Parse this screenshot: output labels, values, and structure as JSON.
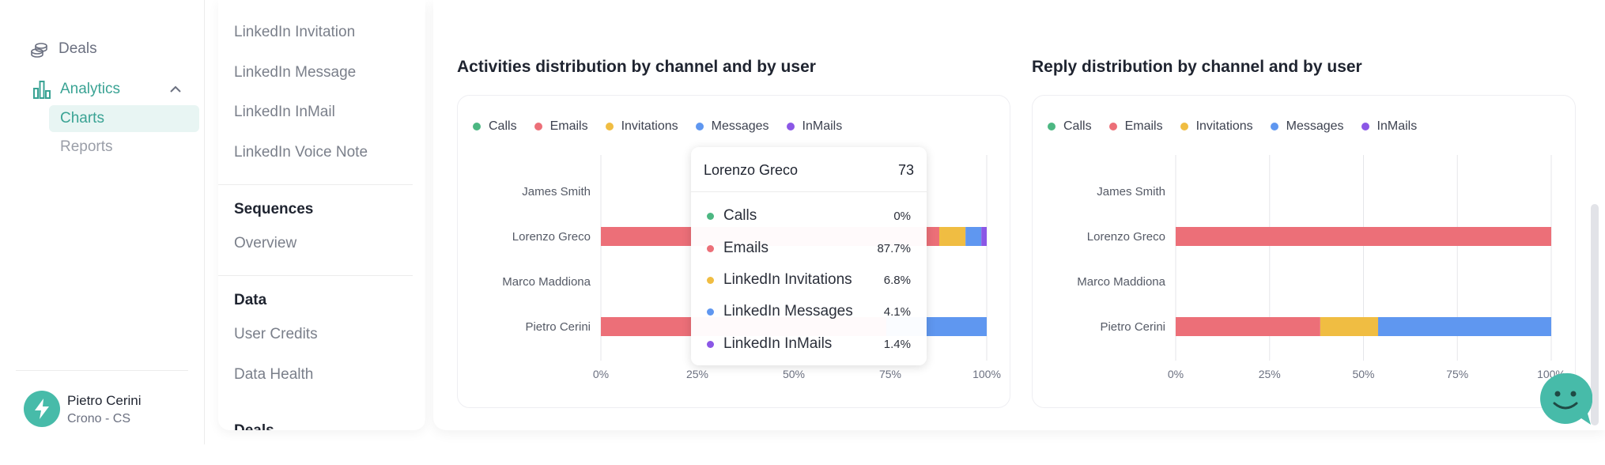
{
  "nav": {
    "items": [
      {
        "label": "Deals",
        "icon": "coins-icon"
      },
      {
        "label": "Analytics",
        "icon": "bar-chart-icon",
        "expanded": true
      }
    ],
    "sub_items": [
      {
        "label": "Charts",
        "active": true
      },
      {
        "label": "Reports",
        "active": false
      }
    ]
  },
  "user": {
    "name": "Pietro Cerini",
    "org": "Crono - CS",
    "avatar_icon": "lightning-icon"
  },
  "subnav": {
    "linkedin_links": [
      "LinkedIn Invitation",
      "LinkedIn Message",
      "LinkedIn InMail",
      "LinkedIn Voice Note"
    ],
    "sequences_heading": "Sequences",
    "sequences_links": [
      "Overview"
    ],
    "data_heading": "Data",
    "data_links": [
      "User Credits",
      "Data Health"
    ],
    "deals_heading": "Deals"
  },
  "colors": {
    "calls": "#4cb782",
    "emails": "#ec6f78",
    "invitations": "#f0bd42",
    "messages": "#5f97f0",
    "inmails": "#8b57e6",
    "accent": "#3aa394",
    "active_bg": "#e8f5f3"
  },
  "chart_data": [
    {
      "type": "bar",
      "orientation": "horizontal",
      "stacked": true,
      "percent": true,
      "title": "Activities distribution by channel and by user",
      "categories": [
        "James Smith",
        "Lorenzo Greco",
        "Marco Maddiona",
        "Pietro Cerini"
      ],
      "xticks": [
        "0%",
        "25%",
        "50%",
        "75%",
        "100%"
      ],
      "xlim": [
        0,
        100
      ],
      "grid": true,
      "legend_position": "top-left",
      "series": [
        {
          "name": "Calls",
          "color": "#4cb782",
          "values": [
            0,
            0,
            0,
            0
          ]
        },
        {
          "name": "Emails",
          "color": "#ec6f78",
          "values": [
            0,
            87.7,
            0,
            74
          ]
        },
        {
          "name": "Invitations",
          "color": "#f0bd42",
          "values": [
            0,
            6.8,
            0,
            0
          ]
        },
        {
          "name": "Messages",
          "color": "#5f97f0",
          "values": [
            0,
            4.1,
            0,
            26
          ]
        },
        {
          "name": "InMails",
          "color": "#8b57e6",
          "values": [
            0,
            1.4,
            0,
            0
          ]
        }
      ],
      "tooltip": {
        "title": "Lorenzo Greco",
        "total": "73",
        "rows": [
          {
            "name": "Calls",
            "value": "0%",
            "color": "#4cb782"
          },
          {
            "name": "Emails",
            "value": "87.7%",
            "color": "#ec6f78"
          },
          {
            "name": "LinkedIn Invitations",
            "value": "6.8%",
            "color": "#f0bd42"
          },
          {
            "name": "LinkedIn Messages",
            "value": "4.1%",
            "color": "#5f97f0"
          },
          {
            "name": "LinkedIn InMails",
            "value": "1.4%",
            "color": "#8b57e6"
          }
        ]
      }
    },
    {
      "type": "bar",
      "orientation": "horizontal",
      "stacked": true,
      "percent": true,
      "title": "Reply distribution by channel and by user",
      "categories": [
        "James Smith",
        "Lorenzo Greco",
        "Marco Maddiona",
        "Pietro Cerini"
      ],
      "xticks": [
        "0%",
        "25%",
        "50%",
        "75%",
        "100%"
      ],
      "xlim": [
        0,
        100
      ],
      "grid": true,
      "legend_position": "top-left",
      "series": [
        {
          "name": "Calls",
          "color": "#4cb782",
          "values": [
            0,
            0,
            0,
            0
          ]
        },
        {
          "name": "Emails",
          "color": "#ec6f78",
          "values": [
            0,
            100,
            0,
            38.5
          ]
        },
        {
          "name": "Invitations",
          "color": "#f0bd42",
          "values": [
            0,
            0,
            0,
            15.4
          ]
        },
        {
          "name": "Messages",
          "color": "#5f97f0",
          "values": [
            0,
            0,
            0,
            46.1
          ]
        },
        {
          "name": "InMails",
          "color": "#8b57e6",
          "values": [
            0,
            0,
            0,
            0
          ]
        }
      ]
    }
  ]
}
